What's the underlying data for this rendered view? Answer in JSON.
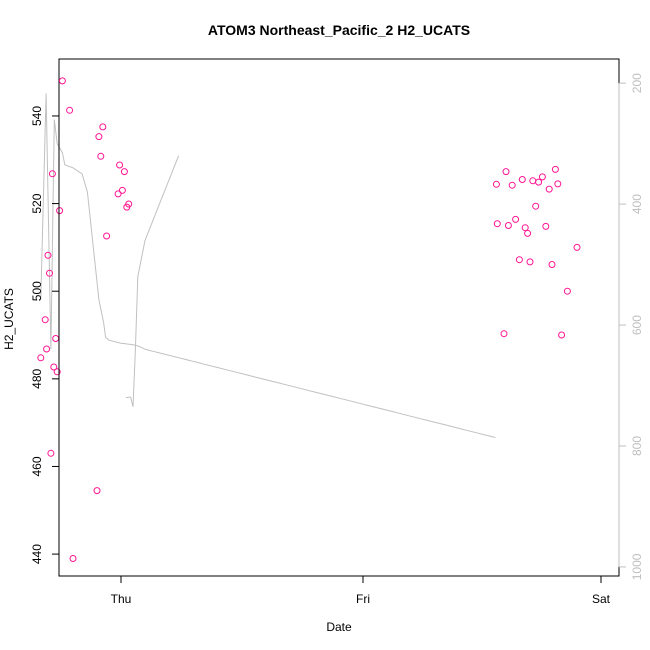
{
  "chart_data": {
    "type": "scatter",
    "title": "ATOM3 Northeast_Pacific_2 H2_UCATS",
    "xlabel": "Date",
    "ylabel": "H2_UCATS",
    "x_ticks": [
      "Thu",
      "Fri",
      "Sat"
    ],
    "y_ticks": [
      440,
      460,
      480,
      500,
      520,
      540
    ],
    "y_right_ticks": [
      200,
      400,
      600,
      800,
      1000
    ],
    "xlim": [
      -0.18,
      1.12
    ],
    "ylim": [
      435,
      553
    ],
    "y_right_lim": [
      1015,
      160
    ],
    "grid": false,
    "colors": {
      "points": "#ff1493",
      "line": "#c0c0c0",
      "axis": "#000000",
      "right_axis": "#bfbfbf"
    },
    "series": [
      {
        "type": "scatter",
        "axis": "left",
        "x": [
          -0.167,
          -0.158,
          -0.155,
          -0.152,
          -0.149,
          -0.146,
          -0.143,
          -0.14,
          -0.136,
          -0.133,
          -0.128,
          -0.122,
          -0.107,
          -0.1,
          -0.05,
          -0.046,
          -0.042,
          -0.038,
          -0.03,
          -0.006,
          -0.003,
          0.003,
          0.007,
          0.012,
          0.016,
          0.782,
          0.784,
          0.798,
          0.802,
          0.807,
          0.815,
          0.822,
          0.83,
          0.836,
          0.842,
          0.847,
          0.852,
          0.858,
          0.864,
          0.87,
          0.878,
          0.885,
          0.892,
          0.898,
          0.905,
          0.91,
          0.918,
          0.93,
          0.95
        ],
        "y": [
          484.8,
          493.5,
          486.8,
          508.2,
          504.1,
          463.0,
          526.8,
          482.7,
          489.2,
          481.6,
          518.4,
          548.0,
          541.3,
          439.0,
          454.5,
          535.3,
          530.8,
          537.5,
          512.6,
          522.2,
          528.8,
          523.0,
          527.3,
          519.2,
          519.9,
          524.4,
          515.4,
          490.3,
          527.3,
          515.0,
          524.2,
          516.4,
          507.2,
          525.5,
          514.5,
          513.2,
          506.7,
          525.2,
          519.4,
          524.9,
          526.1,
          514.8,
          523.3,
          506.1,
          527.8,
          524.5,
          490.0,
          500.0,
          510.0
        ]
      },
      {
        "type": "line",
        "axis": "right",
        "x": [
          -0.167,
          -0.156,
          -0.146,
          -0.139,
          -0.133,
          -0.122,
          -0.117,
          -0.107,
          -0.1,
          -0.081,
          -0.07,
          -0.046,
          -0.036,
          -0.032,
          -0.025,
          0.0,
          0.01,
          0.02,
          0.028,
          0.033,
          0.04,
          0.05,
          0.06,
          0.07,
          0.08,
          0.09,
          0.1,
          0.11,
          0.12,
          0.13,
          0.14,
          0.15,
          0.16,
          0.17,
          0.18,
          0.19,
          0.2,
          0.22,
          0.24,
          0.26,
          0.28,
          0.3,
          0.32,
          0.34,
          0.36,
          0.38,
          0.4,
          0.42,
          0.44,
          0.46,
          0.48,
          0.5,
          0.52,
          0.54,
          0.56,
          0.58,
          0.6,
          0.62,
          0.64,
          0.66,
          0.68,
          0.7,
          0.72,
          0.74,
          0.76,
          0.78
        ],
        "y": [
          557,
          217,
          640,
          260,
          300,
          315,
          335,
          338,
          340,
          350,
          380,
          558,
          597,
          620,
          625,
          630,
          631,
          632,
          633,
          634,
          636,
          640,
          642,
          644,
          646,
          648,
          650,
          652,
          654,
          656,
          658,
          660,
          662,
          664,
          666,
          668,
          670,
          674,
          678,
          682,
          686,
          690,
          694,
          698,
          702,
          706,
          710,
          714,
          718,
          722,
          726,
          730,
          734,
          738,
          742,
          746,
          750,
          754,
          758,
          762,
          766,
          770,
          774,
          778,
          782,
          786
        ]
      },
      {
        "type": "line",
        "axis": "right",
        "x": [
          0.01,
          0.02,
          0.025,
          0.03,
          0.035,
          0.04,
          0.045,
          0.05,
          0.055,
          0.06,
          0.065,
          0.07,
          0.075,
          0.08,
          0.085,
          0.09,
          0.095,
          0.1,
          0.105,
          0.11,
          0.115,
          0.12
        ],
        "y": [
          720,
          719,
          735,
          640,
          520,
          500,
          480,
          460,
          450,
          440,
          430,
          420,
          410,
          400,
          390,
          380,
          370,
          360,
          350,
          340,
          330,
          320
        ]
      }
    ]
  }
}
